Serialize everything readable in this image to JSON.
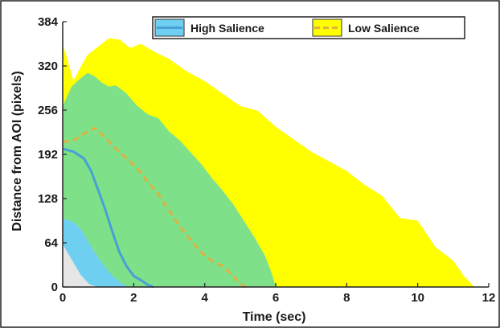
{
  "chart_data": {
    "type": "area",
    "xlabel": "Time (sec)",
    "ylabel": "Distance from AOI (pixels)",
    "xlim": [
      0,
      12
    ],
    "ylim": [
      0,
      384
    ],
    "xticks": [
      0,
      2,
      4,
      6,
      8,
      10,
      12
    ],
    "yticks": [
      0,
      64,
      128,
      192,
      256,
      320,
      384
    ],
    "xtick_labels": [
      "0",
      "2",
      "4",
      "6",
      "8",
      "10",
      "12"
    ],
    "ytick_labels": [
      "0",
      "64",
      "128",
      "192",
      "256",
      "320",
      "384"
    ],
    "grid": false,
    "legend_position": "top",
    "series": [
      {
        "name": "High Salience",
        "color": "#4a9fd5",
        "fill_color": "#6ecff0",
        "line_style": "solid",
        "mean": {
          "x": [
            0,
            0.3,
            0.6,
            0.8,
            1.0,
            1.2,
            1.4,
            1.6,
            1.8,
            2.0,
            2.2,
            2.4,
            2.55
          ],
          "y": [
            200,
            196,
            186,
            168,
            140,
            112,
            80,
            50,
            30,
            16,
            10,
            3,
            0
          ]
        },
        "band_upper": {
          "x": [
            0,
            0.25,
            0.5,
            0.7,
            0.9,
            1.1,
            1.3,
            1.5,
            1.8,
            2.1,
            2.4,
            2.7,
            3.0,
            3.3,
            3.6,
            3.9,
            4.2,
            4.5,
            4.8,
            5.1,
            5.4,
            5.7,
            5.9,
            6.0
          ],
          "y": [
            262,
            290,
            302,
            310,
            305,
            296,
            290,
            292,
            280,
            262,
            250,
            244,
            225,
            212,
            195,
            178,
            158,
            140,
            120,
            96,
            72,
            45,
            18,
            0
          ]
        },
        "band_lower": {
          "x": [
            0,
            0.3,
            0.5,
            0.7,
            0.9,
            1.1,
            1.3,
            1.5,
            1.7,
            1.9
          ],
          "y": [
            100,
            94,
            85,
            68,
            50,
            36,
            22,
            12,
            4,
            0
          ]
        }
      },
      {
        "name": "Low Salience",
        "color": "#e0b040",
        "fill_color": "#ffff00",
        "line_style": "dashed",
        "mean": {
          "x": [
            0,
            0.3,
            0.6,
            0.9,
            1.2,
            1.5,
            1.8,
            2.1,
            2.4,
            2.7,
            3.0,
            3.3,
            3.6,
            3.9,
            4.2,
            4.5,
            4.8,
            5.0,
            5.15
          ],
          "y": [
            210,
            212,
            222,
            230,
            216,
            200,
            186,
            172,
            152,
            134,
            110,
            88,
            68,
            50,
            38,
            30,
            16,
            5,
            0
          ]
        },
        "band_upper": {
          "x": [
            0,
            0.1,
            0.3,
            0.5,
            0.7,
            0.9,
            1.1,
            1.3,
            1.6,
            1.9,
            2.2,
            2.6,
            3.0,
            3.5,
            4.0,
            4.5,
            5.0,
            5.5,
            6.0,
            6.5,
            7.0,
            7.5,
            8.0,
            8.5,
            9.0,
            9.5,
            10.0,
            10.5,
            11.0,
            11.3,
            11.6
          ],
          "y": [
            350,
            336,
            298,
            318,
            336,
            344,
            352,
            360,
            358,
            346,
            352,
            340,
            330,
            312,
            298,
            280,
            262,
            255,
            232,
            214,
            196,
            182,
            168,
            148,
            132,
            100,
            96,
            58,
            38,
            16,
            0
          ]
        },
        "band_lower": {
          "x": [
            0,
            0.2,
            0.4,
            0.6
          ],
          "y": [
            95,
            90,
            72,
            0
          ]
        }
      }
    ],
    "gray_region": {
      "color": "#e6e6e6",
      "x": [
        0,
        0.25,
        0.5,
        0.75,
        1.0
      ],
      "y": [
        62,
        40,
        18,
        4,
        0
      ]
    }
  }
}
